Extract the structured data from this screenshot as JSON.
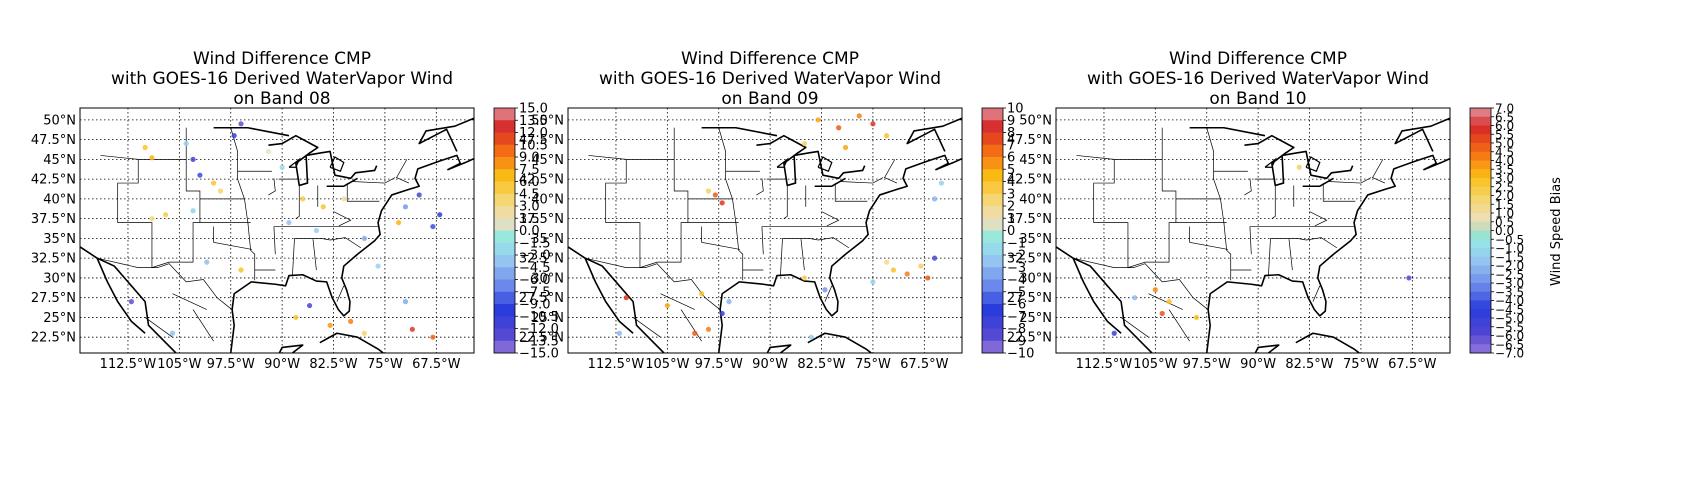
{
  "panels": [
    {
      "title_lines": [
        "Wind Difference CMP",
        "with GOES-16 Derived WaterVapor Wind",
        "on Band 08"
      ],
      "colorbar_ticks": [
        "15.0",
        "13.5",
        "12.0",
        "10.5",
        "9.0",
        "7.5",
        "6.0",
        "4.5",
        "3.0",
        "1.5",
        "0.0",
        "−1.5",
        "−3.0",
        "−4.5",
        "−6.0",
        "−7.5",
        "−9.0",
        "−10.5",
        "−12.0",
        "−13.5",
        "−15.0"
      ],
      "colorbar_range": [
        -15,
        15
      ],
      "wind_difference_points": [
        {
          "lon": -110,
          "lat": 46.5,
          "v": 6
        },
        {
          "lon": -109,
          "lat": 45.2,
          "v": 7
        },
        {
          "lon": -104,
          "lat": 47,
          "v": -3
        },
        {
          "lon": -103,
          "lat": 45,
          "v": -12
        },
        {
          "lon": -102,
          "lat": 43,
          "v": -9
        },
        {
          "lon": -97,
          "lat": 48,
          "v": -11
        },
        {
          "lon": -96,
          "lat": 49.5,
          "v": -13
        },
        {
          "lon": -100,
          "lat": 42,
          "v": 6
        },
        {
          "lon": -99,
          "lat": 41,
          "v": 4
        },
        {
          "lon": -103,
          "lat": 38.5,
          "v": -3
        },
        {
          "lon": -107,
          "lat": 38,
          "v": 5
        },
        {
          "lon": -109,
          "lat": 37.5,
          "v": 3
        },
        {
          "lon": -92,
          "lat": 46,
          "v": 1
        },
        {
          "lon": -90,
          "lat": 44,
          "v": -2
        },
        {
          "lon": -87,
          "lat": 40,
          "v": 5
        },
        {
          "lon": -84,
          "lat": 39,
          "v": 6
        },
        {
          "lon": -81,
          "lat": 40,
          "v": 2
        },
        {
          "lon": -89,
          "lat": 37,
          "v": -4
        },
        {
          "lon": -85,
          "lat": 36,
          "v": -3
        },
        {
          "lon": -72,
          "lat": 39,
          "v": -6
        },
        {
          "lon": -70,
          "lat": 40.5,
          "v": -12
        },
        {
          "lon": -67,
          "lat": 38,
          "v": -10
        },
        {
          "lon": -68,
          "lat": 36.5,
          "v": -9
        },
        {
          "lon": -73,
          "lat": 37,
          "v": 7
        },
        {
          "lon": -76,
          "lat": 31.5,
          "v": -3
        },
        {
          "lon": -86,
          "lat": 26.5,
          "v": -12
        },
        {
          "lon": -88,
          "lat": 25,
          "v": 6
        },
        {
          "lon": -83,
          "lat": 24,
          "v": 8
        },
        {
          "lon": -80,
          "lat": 24.5,
          "v": 9
        },
        {
          "lon": -78,
          "lat": 23,
          "v": 4
        },
        {
          "lon": -71,
          "lat": 23.5,
          "v": 12
        },
        {
          "lon": -68,
          "lat": 22.5,
          "v": 10
        },
        {
          "lon": -72,
          "lat": 27,
          "v": -5
        },
        {
          "lon": -112,
          "lat": 27,
          "v": -13
        },
        {
          "lon": -101,
          "lat": 32,
          "v": -4
        },
        {
          "lon": -96,
          "lat": 31,
          "v": 6
        },
        {
          "lon": -78,
          "lat": 35,
          "v": -5
        },
        {
          "lon": -106,
          "lat": 23,
          "v": -4
        }
      ]
    },
    {
      "title_lines": [
        "Wind Difference CMP",
        "with GOES-16 Derived WaterVapor Wind",
        "on Band 09"
      ],
      "colorbar_ticks": [
        "10",
        "9",
        "8",
        "7",
        "6",
        "5",
        "4",
        "3",
        "2",
        "1",
        "0",
        "−1",
        "−2",
        "−3",
        "−4",
        "−5",
        "−6",
        "−7",
        "−8",
        "−9",
        "−10"
      ],
      "colorbar_range": [
        -10,
        10
      ],
      "wind_difference_points": [
        {
          "lon": -83,
          "lat": 50,
          "v": 5
        },
        {
          "lon": -80,
          "lat": 49,
          "v": 7
        },
        {
          "lon": -77,
          "lat": 50.5,
          "v": 6
        },
        {
          "lon": -75,
          "lat": 49.5,
          "v": 8
        },
        {
          "lon": -73,
          "lat": 48,
          "v": 4
        },
        {
          "lon": -85,
          "lat": 47,
          "v": 3
        },
        {
          "lon": -79,
          "lat": 46.5,
          "v": 5
        },
        {
          "lon": -98,
          "lat": 40.5,
          "v": 7
        },
        {
          "lon": -97,
          "lat": 39.5,
          "v": 8
        },
        {
          "lon": -99,
          "lat": 41,
          "v": 3
        },
        {
          "lon": -65,
          "lat": 42,
          "v": -2
        },
        {
          "lon": -66,
          "lat": 40,
          "v": -3
        },
        {
          "lon": -72,
          "lat": 31,
          "v": 4
        },
        {
          "lon": -70,
          "lat": 30.5,
          "v": 6
        },
        {
          "lon": -68,
          "lat": 31.5,
          "v": 3
        },
        {
          "lon": -67,
          "lat": 30,
          "v": 7
        },
        {
          "lon": -73,
          "lat": 32,
          "v": 2
        },
        {
          "lon": -75,
          "lat": 29.5,
          "v": -2
        },
        {
          "lon": -66,
          "lat": 32.5,
          "v": -8
        },
        {
          "lon": -101,
          "lat": 23,
          "v": 7
        },
        {
          "lon": -99,
          "lat": 23.5,
          "v": 6
        },
        {
          "lon": -97,
          "lat": 25.5,
          "v": -7
        },
        {
          "lon": -96,
          "lat": 27,
          "v": -3
        },
        {
          "lon": -100,
          "lat": 28,
          "v": 4
        },
        {
          "lon": -112,
          "lat": 23,
          "v": -3
        },
        {
          "lon": -111,
          "lat": 27.5,
          "v": 8
        },
        {
          "lon": -105,
          "lat": 26.5,
          "v": 5
        },
        {
          "lon": -85,
          "lat": 30,
          "v": 3
        },
        {
          "lon": -84,
          "lat": 22.5,
          "v": -2
        },
        {
          "lon": -82,
          "lat": 28.5,
          "v": -4
        }
      ]
    },
    {
      "title_lines": [
        "Wind Difference CMP",
        "with GOES-16 Derived WaterVapor Wind",
        "on Band 10"
      ],
      "colorbar_ticks": [
        "7.0",
        "6.5",
        "6.0",
        "5.5",
        "5.0",
        "4.5",
        "4.0",
        "3.5",
        "3.0",
        "2.5",
        "2.0",
        "1.5",
        "1.0",
        "0.5",
        "0.0",
        "−0.5",
        "−1.0",
        "−1.5",
        "−2.0",
        "−2.5",
        "−3.0",
        "−3.5",
        "−4.0",
        "−4.5",
        "−5.0",
        "−5.5",
        "−6.0",
        "−6.5",
        "−7.0"
      ],
      "colorbar_range": [
        -7,
        7
      ],
      "colorbar_label": "Wind Speed Bias",
      "wind_difference_points": [
        {
          "lon": -105,
          "lat": 28.5,
          "v": 4
        },
        {
          "lon": -103,
          "lat": 27,
          "v": 3
        },
        {
          "lon": -108,
          "lat": 27.5,
          "v": -2
        },
        {
          "lon": -104,
          "lat": 25.5,
          "v": 5
        },
        {
          "lon": -99,
          "lat": 25,
          "v": 3
        },
        {
          "lon": -111,
          "lat": 23,
          "v": -5
        },
        {
          "lon": -68,
          "lat": 30,
          "v": -6
        },
        {
          "lon": -84,
          "lat": 44,
          "v": 2
        }
      ]
    }
  ],
  "axes": {
    "lat_ticks": [
      "50°N",
      "47.5°N",
      "45°N",
      "42.5°N",
      "40°N",
      "37.5°N",
      "35°N",
      "32.5°N",
      "30°N",
      "27.5°N",
      "25°N",
      "22.5°N"
    ],
    "lat_values": [
      50,
      47.5,
      45,
      42.5,
      40,
      37.5,
      35,
      32.5,
      30,
      27.5,
      25,
      22.5
    ],
    "lon_ticks": [
      "112.5°W",
      "105°W",
      "97.5°W",
      "90°W",
      "82.5°W",
      "75°W",
      "67.5°W"
    ],
    "lon_values": [
      -112.5,
      -105,
      -97.5,
      -90,
      -82.5,
      -75,
      -67.5
    ],
    "lon_range": [
      -119.5,
      -62
    ],
    "lat_range": [
      20.5,
      51.5
    ]
  }
}
